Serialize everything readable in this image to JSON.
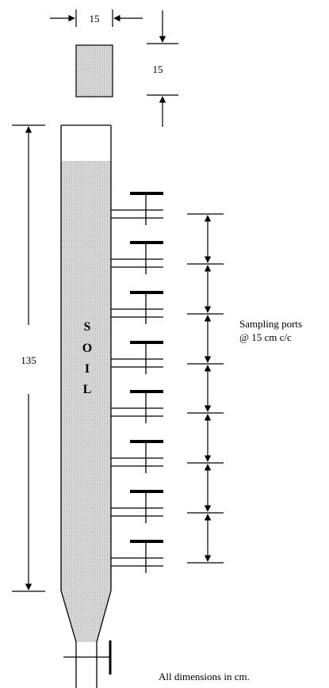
{
  "top_width_dimension": "15",
  "top_height_dimension": "15",
  "column_height_dimension": "135",
  "soil_label": [
    "S",
    "O",
    "I",
    "L"
  ],
  "ports_label_line1": "Sampling ports",
  "ports_label_line2": "@ 15 cm c/c",
  "footnote": "All dimensions in cm.",
  "soil_fill_color": "#cfcfcf",
  "line_color": "#000000"
}
